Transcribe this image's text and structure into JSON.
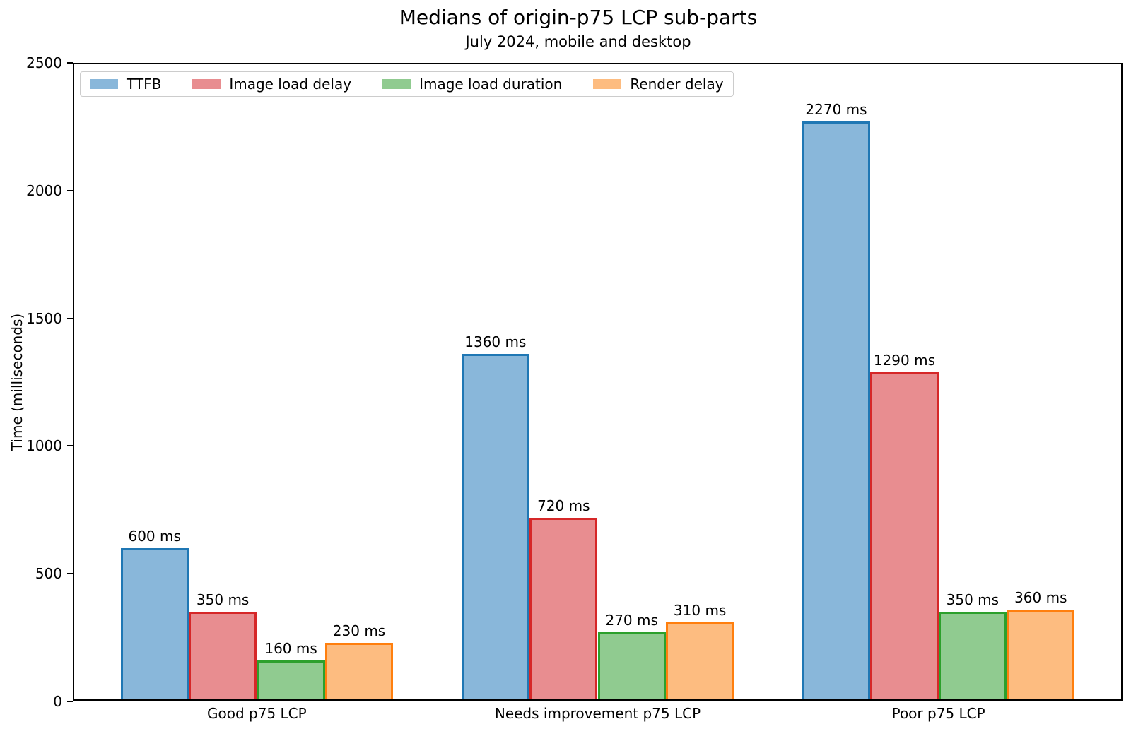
{
  "page": {
    "background": "#ffffff",
    "text_color": "#000000",
    "axis_color": "#000000",
    "legend_border_color": "#cccccc"
  },
  "chart_data": {
    "type": "bar",
    "title": "Medians of origin-p75 LCP sub-parts",
    "subtitle": "July 2024, mobile and desktop",
    "ylabel": "Time (milliseconds)",
    "xlabel": "",
    "value_suffix": " ms",
    "ylim": [
      0,
      2500
    ],
    "yticks": [
      0,
      500,
      1000,
      1500,
      2000,
      2500
    ],
    "grid": false,
    "legend_position": "upper-left-inside",
    "categories": [
      "Good p75 LCP",
      "Needs improvement p75 LCP",
      "Poor p75 LCP"
    ],
    "series": [
      {
        "name": "TTFB",
        "fill": "#89b7da",
        "edge": "#1f77b4",
        "values": [
          600,
          1360,
          2270
        ]
      },
      {
        "name": "Image load delay",
        "fill": "#e88d90",
        "edge": "#d62728",
        "values": [
          350,
          720,
          1290
        ]
      },
      {
        "name": "Image load duration",
        "fill": "#90cb90",
        "edge": "#2ca02c",
        "values": [
          160,
          270,
          350
        ]
      },
      {
        "name": "Render delay",
        "fill": "#fdbc80",
        "edge": "#ff7f0e",
        "values": [
          230,
          310,
          360
        ]
      }
    ]
  }
}
